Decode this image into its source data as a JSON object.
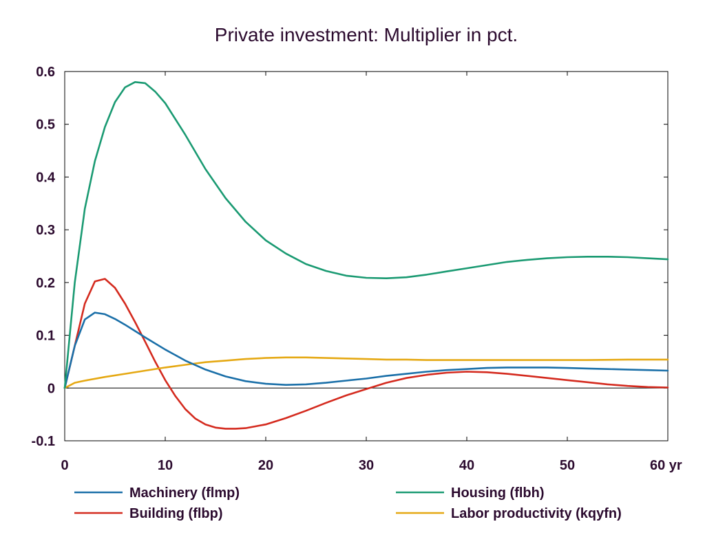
{
  "chart_data": {
    "type": "line",
    "title": "Private investment: Multiplier in pct.",
    "xlabel": "",
    "ylabel": "",
    "xlim": [
      0,
      60
    ],
    "ylim": [
      -0.1,
      0.6
    ],
    "x_ticks": [
      "0",
      "10",
      "20",
      "30",
      "40",
      "50",
      "60 yr"
    ],
    "y_ticks": [
      "-0.1",
      "0",
      "0.1",
      "0.2",
      "0.3",
      "0.4",
      "0.5",
      "0.6"
    ],
    "grid": false,
    "legend_position": "bottom",
    "series": [
      {
        "name": "Machinery (flmp)",
        "color": "#1a6fa8",
        "x": [
          0,
          1,
          2,
          3,
          4,
          5,
          6,
          7,
          8,
          10,
          12,
          14,
          16,
          18,
          20,
          22,
          24,
          26,
          28,
          30,
          32,
          34,
          36,
          38,
          40,
          42,
          44,
          46,
          48,
          50,
          52,
          54,
          56,
          58,
          60
        ],
        "y": [
          0,
          0.08,
          0.13,
          0.143,
          0.14,
          0.131,
          0.12,
          0.108,
          0.096,
          0.073,
          0.052,
          0.035,
          0.022,
          0.013,
          0.008,
          0.006,
          0.007,
          0.01,
          0.014,
          0.018,
          0.023,
          0.027,
          0.031,
          0.034,
          0.036,
          0.038,
          0.039,
          0.039,
          0.039,
          0.038,
          0.037,
          0.036,
          0.035,
          0.034,
          0.033
        ]
      },
      {
        "name": "Housing (flbh)",
        "color": "#1a9a72",
        "x": [
          0,
          1,
          2,
          3,
          4,
          5,
          6,
          7,
          8,
          9,
          10,
          12,
          14,
          16,
          18,
          20,
          22,
          24,
          26,
          28,
          30,
          32,
          34,
          36,
          38,
          40,
          42,
          44,
          46,
          48,
          50,
          52,
          54,
          56,
          58,
          60
        ],
        "y": [
          0,
          0.2,
          0.34,
          0.43,
          0.495,
          0.542,
          0.57,
          0.58,
          0.578,
          0.562,
          0.54,
          0.48,
          0.415,
          0.36,
          0.315,
          0.28,
          0.255,
          0.235,
          0.222,
          0.213,
          0.209,
          0.208,
          0.21,
          0.215,
          0.221,
          0.227,
          0.233,
          0.239,
          0.243,
          0.246,
          0.248,
          0.249,
          0.249,
          0.248,
          0.246,
          0.244
        ]
      },
      {
        "name": "Building (flbp)",
        "color": "#d42a1e",
        "x": [
          0,
          1,
          2,
          3,
          4,
          5,
          6,
          7,
          8,
          9,
          10,
          11,
          12,
          13,
          14,
          15,
          16,
          17,
          18,
          20,
          22,
          24,
          26,
          28,
          30,
          32,
          34,
          36,
          38,
          40,
          42,
          44,
          46,
          48,
          50,
          52,
          54,
          56,
          58,
          60
        ],
        "y": [
          0,
          0.08,
          0.16,
          0.202,
          0.207,
          0.19,
          0.16,
          0.125,
          0.088,
          0.05,
          0.015,
          -0.015,
          -0.04,
          -0.058,
          -0.069,
          -0.075,
          -0.077,
          -0.077,
          -0.076,
          -0.069,
          -0.057,
          -0.043,
          -0.028,
          -0.014,
          -0.002,
          0.01,
          0.019,
          0.025,
          0.029,
          0.031,
          0.03,
          0.027,
          0.023,
          0.019,
          0.015,
          0.011,
          0.007,
          0.004,
          0.002,
          0.001
        ]
      },
      {
        "name": "Labor productivity (kqyfn)",
        "color": "#e5a812",
        "x": [
          0,
          1,
          2,
          4,
          6,
          8,
          10,
          12,
          14,
          16,
          18,
          20,
          22,
          24,
          26,
          28,
          30,
          32,
          34,
          36,
          38,
          40,
          44,
          48,
          52,
          56,
          60
        ],
        "y": [
          0,
          0.01,
          0.014,
          0.021,
          0.027,
          0.033,
          0.039,
          0.044,
          0.049,
          0.052,
          0.055,
          0.057,
          0.058,
          0.058,
          0.057,
          0.056,
          0.055,
          0.054,
          0.054,
          0.053,
          0.053,
          0.053,
          0.053,
          0.053,
          0.053,
          0.054,
          0.054
        ]
      }
    ]
  }
}
